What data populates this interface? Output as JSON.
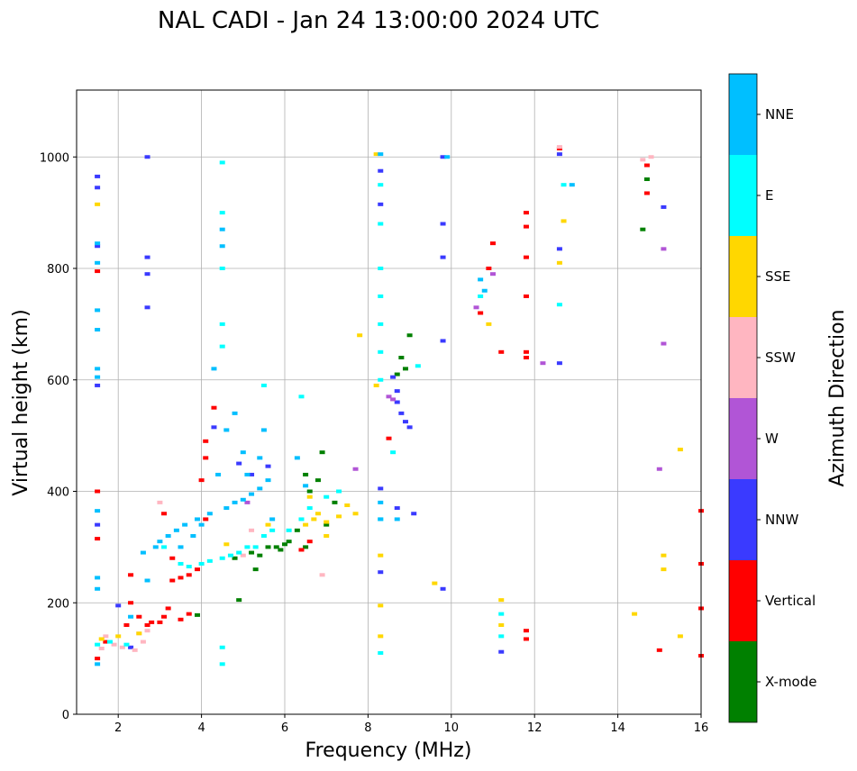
{
  "chart_data": {
    "type": "scatter",
    "title": "NAL CADI - Jan 24 13:00:00 2024 UTC",
    "xlabel": "Frequency (MHz)",
    "ylabel": "Virtual height (km)",
    "xlim": [
      1,
      16
    ],
    "ylim": [
      0,
      1120
    ],
    "xticks": [
      2,
      4,
      6,
      8,
      10,
      12,
      14,
      16
    ],
    "yticks": [
      0,
      200,
      400,
      600,
      800,
      1000
    ],
    "grid": true,
    "colorbar": {
      "title": "Azimuth Direction",
      "categories": [
        {
          "label": "X-mode",
          "color": "#008000"
        },
        {
          "label": "Vertical",
          "color": "#ff0000"
        },
        {
          "label": "NNW",
          "color": "#3a3aff"
        },
        {
          "label": "W",
          "color": "#b155d6"
        },
        {
          "label": "SSW",
          "color": "#ffb6c1"
        },
        {
          "label": "SSE",
          "color": "#ffd700"
        },
        {
          "label": "E",
          "color": "#00ffff"
        },
        {
          "label": "NNE",
          "color": "#00bfff"
        }
      ]
    },
    "series": [
      {
        "name": "X-mode",
        "points": [
          [
            3.9,
            178
          ],
          [
            4.9,
            205
          ],
          [
            5.2,
            290
          ],
          [
            5.4,
            285
          ],
          [
            5.6,
            300
          ],
          [
            5.8,
            300
          ],
          [
            6.0,
            305
          ],
          [
            6.1,
            310
          ],
          [
            6.3,
            330
          ],
          [
            6.5,
            300
          ],
          [
            6.6,
            400
          ],
          [
            6.8,
            420
          ],
          [
            7.0,
            340
          ],
          [
            7.2,
            380
          ],
          [
            6.5,
            430
          ],
          [
            6.9,
            470
          ],
          [
            8.9,
            620
          ],
          [
            8.8,
            640
          ],
          [
            9.0,
            680
          ],
          [
            8.7,
            610
          ],
          [
            14.7,
            960
          ],
          [
            14.6,
            870
          ],
          [
            5.3,
            260
          ],
          [
            4.8,
            280
          ],
          [
            5.9,
            295
          ]
        ]
      },
      {
        "name": "Vertical",
        "points": [
          [
            1.5,
            100
          ],
          [
            1.7,
            130
          ],
          [
            2.2,
            160
          ],
          [
            2.3,
            200
          ],
          [
            2.5,
            175
          ],
          [
            2.7,
            160
          ],
          [
            2.8,
            165
          ],
          [
            3.0,
            165
          ],
          [
            3.1,
            175
          ],
          [
            3.2,
            190
          ],
          [
            3.3,
            240
          ],
          [
            3.5,
            245
          ],
          [
            3.7,
            250
          ],
          [
            3.9,
            260
          ],
          [
            4.1,
            350
          ],
          [
            4.0,
            420
          ],
          [
            4.1,
            460
          ],
          [
            3.7,
            180
          ],
          [
            3.5,
            170
          ],
          [
            4.1,
            490
          ],
          [
            3.1,
            360
          ],
          [
            3.3,
            280
          ],
          [
            1.5,
            795
          ],
          [
            1.5,
            400
          ],
          [
            1.5,
            315
          ],
          [
            2.3,
            250
          ],
          [
            6.4,
            295
          ],
          [
            6.6,
            310
          ],
          [
            10.7,
            720
          ],
          [
            10.9,
            800
          ],
          [
            11.0,
            845
          ],
          [
            11.8,
            650
          ],
          [
            11.8,
            640
          ],
          [
            11.8,
            750
          ],
          [
            11.8,
            820
          ],
          [
            11.8,
            875
          ],
          [
            11.8,
            900
          ],
          [
            11.8,
            150
          ],
          [
            11.8,
            135
          ],
          [
            11.2,
            650
          ],
          [
            12.6,
            1015
          ],
          [
            15.0,
            115
          ],
          [
            14.7,
            935
          ],
          [
            14.7,
            985
          ],
          [
            16.0,
            365
          ],
          [
            16.0,
            270
          ],
          [
            16.0,
            190
          ],
          [
            16.0,
            105
          ],
          [
            8.5,
            495
          ],
          [
            4.3,
            550
          ]
        ]
      },
      {
        "name": "NNW",
        "points": [
          [
            1.5,
            965
          ],
          [
            1.5,
            945
          ],
          [
            1.5,
            840
          ],
          [
            2.7,
            1000
          ],
          [
            2.7,
            820
          ],
          [
            2.7,
            790
          ],
          [
            2.7,
            730
          ],
          [
            1.5,
            590
          ],
          [
            1.5,
            340
          ],
          [
            2.0,
            195
          ],
          [
            2.3,
            120
          ],
          [
            8.3,
            975
          ],
          [
            8.3,
            915
          ],
          [
            8.3,
            405
          ],
          [
            8.3,
            255
          ],
          [
            9.8,
            1000
          ],
          [
            9.8,
            880
          ],
          [
            9.8,
            820
          ],
          [
            9.8,
            670
          ],
          [
            9.8,
            225
          ],
          [
            8.6,
            605
          ],
          [
            8.7,
            580
          ],
          [
            8.8,
            540
          ],
          [
            8.9,
            525
          ],
          [
            9.0,
            515
          ],
          [
            8.7,
            370
          ],
          [
            9.1,
            360
          ],
          [
            4.3,
            515
          ],
          [
            4.9,
            450
          ],
          [
            5.2,
            430
          ],
          [
            11.2,
            112
          ],
          [
            12.6,
            1005
          ],
          [
            12.6,
            835
          ],
          [
            12.6,
            630
          ],
          [
            15.1,
            910
          ],
          [
            5.6,
            445
          ],
          [
            8.7,
            560
          ]
        ]
      },
      {
        "name": "W",
        "points": [
          [
            8.5,
            570
          ],
          [
            8.6,
            565
          ],
          [
            15.1,
            835
          ],
          [
            15.1,
            665
          ],
          [
            15.0,
            440
          ],
          [
            12.2,
            630
          ],
          [
            10.6,
            730
          ],
          [
            11.0,
            790
          ],
          [
            5.1,
            380
          ],
          [
            7.7,
            440
          ]
        ]
      },
      {
        "name": "SSW",
        "points": [
          [
            1.6,
            118
          ],
          [
            1.9,
            125
          ],
          [
            2.1,
            120
          ],
          [
            2.4,
            115
          ],
          [
            2.6,
            130
          ],
          [
            2.7,
            150
          ],
          [
            3.0,
            380
          ],
          [
            5.0,
            285
          ],
          [
            5.2,
            330
          ],
          [
            6.9,
            250
          ],
          [
            14.6,
            995
          ],
          [
            14.8,
            1000
          ],
          [
            12.6,
            1018
          ],
          [
            1.7,
            140
          ],
          [
            2.5,
            145
          ]
        ]
      },
      {
        "name": "SSE",
        "points": [
          [
            1.6,
            135
          ],
          [
            2.0,
            140
          ],
          [
            2.5,
            145
          ],
          [
            6.7,
            350
          ],
          [
            6.8,
            360
          ],
          [
            7.0,
            345
          ],
          [
            7.3,
            355
          ],
          [
            7.5,
            375
          ],
          [
            7.7,
            360
          ],
          [
            6.6,
            390
          ],
          [
            6.5,
            340
          ],
          [
            7.0,
            320
          ],
          [
            8.2,
            1005
          ],
          [
            8.3,
            285
          ],
          [
            8.3,
            195
          ],
          [
            8.3,
            140
          ],
          [
            8.2,
            590
          ],
          [
            11.2,
            205
          ],
          [
            11.2,
            160
          ],
          [
            12.7,
            885
          ],
          [
            12.6,
            810
          ],
          [
            14.4,
            180
          ],
          [
            15.1,
            285
          ],
          [
            15.1,
            260
          ],
          [
            15.5,
            475
          ],
          [
            15.5,
            140
          ],
          [
            1.5,
            915
          ],
          [
            7.8,
            680
          ],
          [
            10.9,
            700
          ],
          [
            9.6,
            235
          ],
          [
            4.6,
            305
          ],
          [
            5.6,
            340
          ]
        ]
      },
      {
        "name": "E",
        "points": [
          [
            1.5,
            125
          ],
          [
            1.8,
            130
          ],
          [
            2.2,
            125
          ],
          [
            3.1,
            300
          ],
          [
            3.5,
            270
          ],
          [
            3.7,
            265
          ],
          [
            4.0,
            270
          ],
          [
            4.2,
            275
          ],
          [
            4.5,
            280
          ],
          [
            4.7,
            285
          ],
          [
            4.9,
            290
          ],
          [
            5.1,
            300
          ],
          [
            5.3,
            300
          ],
          [
            5.5,
            320
          ],
          [
            5.7,
            330
          ],
          [
            6.1,
            330
          ],
          [
            6.4,
            350
          ],
          [
            6.6,
            370
          ],
          [
            7.0,
            390
          ],
          [
            7.3,
            400
          ],
          [
            4.5,
            990
          ],
          [
            4.5,
            900
          ],
          [
            4.5,
            800
          ],
          [
            4.5,
            700
          ],
          [
            4.5,
            660
          ],
          [
            4.5,
            120
          ],
          [
            4.5,
            90
          ],
          [
            8.3,
            950
          ],
          [
            8.3,
            880
          ],
          [
            8.3,
            800
          ],
          [
            8.3,
            750
          ],
          [
            8.3,
            700
          ],
          [
            8.3,
            650
          ],
          [
            8.3,
            600
          ],
          [
            8.3,
            350
          ],
          [
            8.3,
            110
          ],
          [
            8.6,
            470
          ],
          [
            12.7,
            950
          ],
          [
            12.6,
            735
          ],
          [
            11.2,
            140
          ],
          [
            11.2,
            180
          ],
          [
            10.7,
            750
          ],
          [
            9.2,
            625
          ],
          [
            6.4,
            570
          ],
          [
            5.5,
            590
          ]
        ]
      },
      {
        "name": "NNE",
        "points": [
          [
            1.5,
            845
          ],
          [
            1.5,
            810
          ],
          [
            1.5,
            725
          ],
          [
            1.5,
            690
          ],
          [
            1.5,
            620
          ],
          [
            1.5,
            605
          ],
          [
            1.5,
            365
          ],
          [
            1.5,
            245
          ],
          [
            1.5,
            225
          ],
          [
            1.5,
            90
          ],
          [
            2.3,
            175
          ],
          [
            2.6,
            290
          ],
          [
            2.9,
            300
          ],
          [
            3.0,
            310
          ],
          [
            3.2,
            320
          ],
          [
            3.4,
            330
          ],
          [
            3.6,
            340
          ],
          [
            3.9,
            350
          ],
          [
            4.2,
            360
          ],
          [
            4.4,
            430
          ],
          [
            4.6,
            370
          ],
          [
            4.8,
            380
          ],
          [
            5.0,
            385
          ],
          [
            5.2,
            395
          ],
          [
            5.4,
            405
          ],
          [
            5.6,
            420
          ],
          [
            5.0,
            470
          ],
          [
            5.4,
            460
          ],
          [
            5.5,
            510
          ],
          [
            5.7,
            350
          ],
          [
            6.3,
            460
          ],
          [
            6.5,
            410
          ],
          [
            4.6,
            510
          ],
          [
            4.8,
            540
          ],
          [
            4.3,
            620
          ],
          [
            4.5,
            840
          ],
          [
            4.5,
            870
          ],
          [
            8.3,
            1005
          ],
          [
            8.3,
            350
          ],
          [
            8.3,
            380
          ],
          [
            8.7,
            350
          ],
          [
            10.8,
            760
          ],
          [
            10.7,
            780
          ],
          [
            9.9,
            1000
          ],
          [
            12.9,
            950
          ],
          [
            2.7,
            240
          ],
          [
            3.5,
            300
          ],
          [
            3.8,
            320
          ],
          [
            4.0,
            340
          ],
          [
            5.1,
            430
          ]
        ]
      }
    ]
  }
}
